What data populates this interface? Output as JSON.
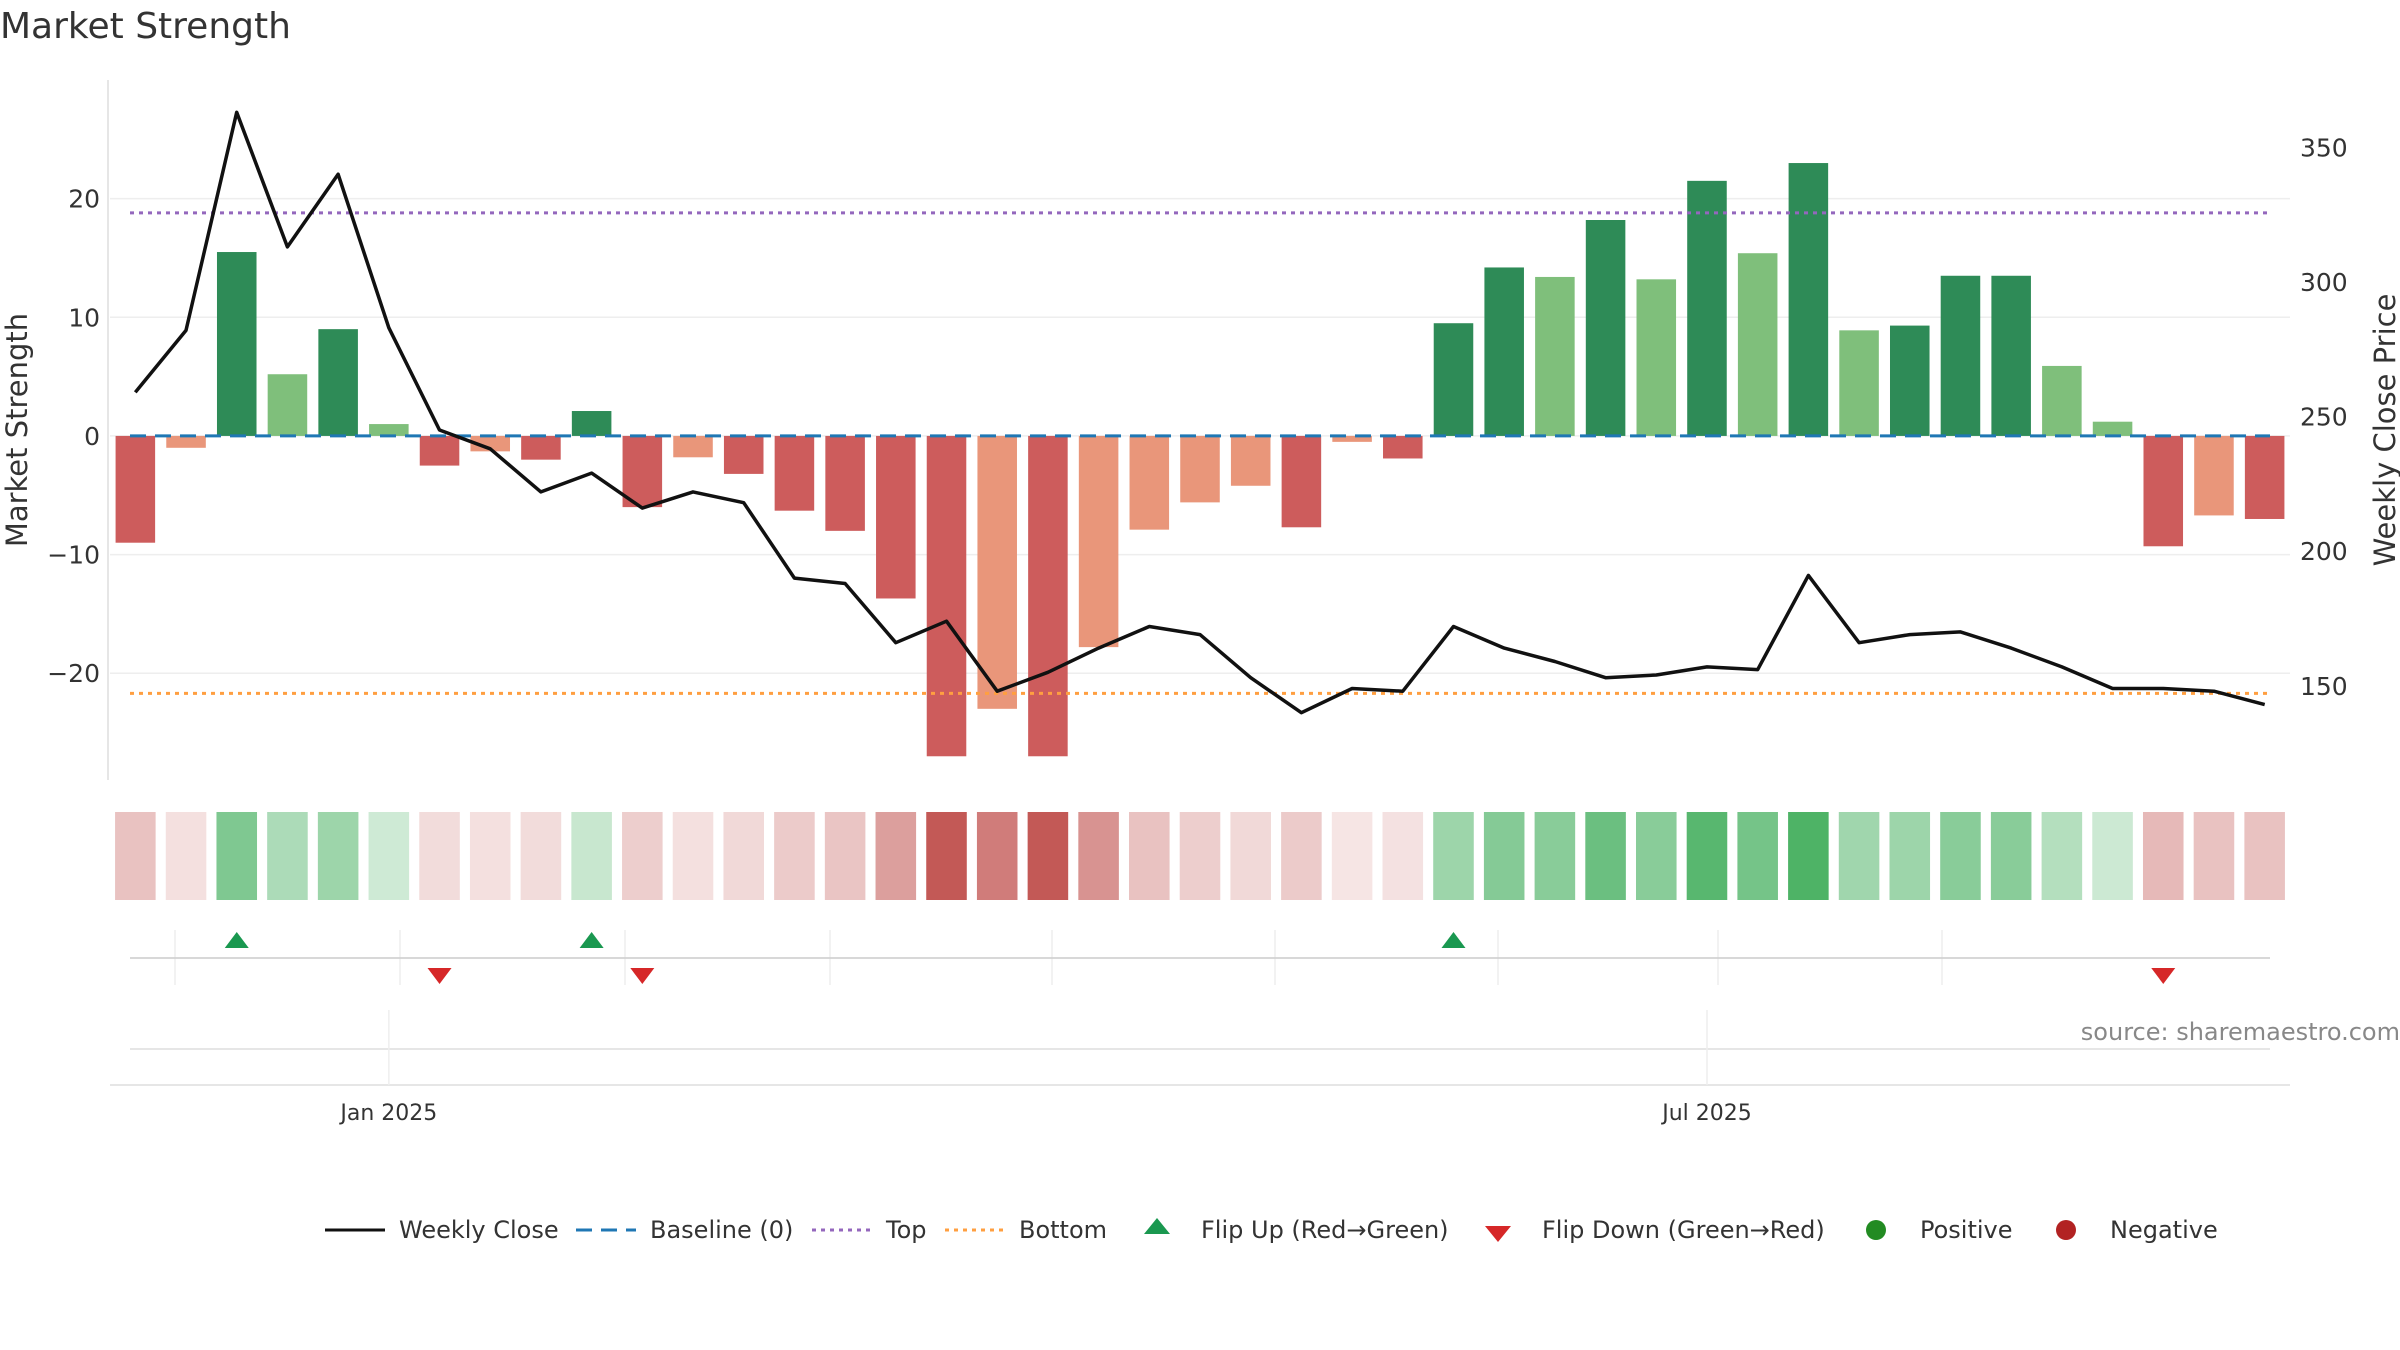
{
  "title": "Market Strength",
  "source": "source: sharemaestro.com",
  "colors": {
    "strong_green": "#2e8b57",
    "light_green": "#7fbf7b",
    "strong_red": "#cd5c5c",
    "light_red": "#e9967a",
    "close_line": "#111111",
    "baseline": "#1f77b4",
    "top": "#9467bd",
    "bottom": "#ff9f40",
    "flip_up": "#1a9850",
    "flip_down": "#d62728",
    "positive": "#228b22",
    "negative": "#b22222"
  },
  "legend": [
    {
      "key": "close",
      "label": "Weekly Close"
    },
    {
      "key": "baseline",
      "label": "Baseline (0)"
    },
    {
      "key": "top",
      "label": "Top"
    },
    {
      "key": "bottom",
      "label": "Bottom"
    },
    {
      "key": "flip_up",
      "label": "Flip Up (Red→Green)"
    },
    {
      "key": "flip_down",
      "label": "Flip Down (Green→Red)"
    },
    {
      "key": "positive",
      "label": "Positive"
    },
    {
      "key": "negative",
      "label": "Negative"
    }
  ],
  "chart_data": {
    "type": "bar",
    "ylabel_left": "Market Strength",
    "ylabel_right": "Weekly Close Price",
    "ylim_left": [
      -29,
      30
    ],
    "ylim_right": [
      115,
      375
    ],
    "yticks_left": [
      20,
      10,
      0,
      -10,
      -20
    ],
    "yticks_left_labels": [
      "20",
      "10",
      "0",
      "−10",
      "−20"
    ],
    "yticks_right": [
      350,
      300,
      250,
      200,
      150
    ],
    "xtick_labels": [
      {
        "label": "Jan 2025",
        "week_index": 5.5
      },
      {
        "label": "Jul 2025",
        "week_index": 31.5
      }
    ],
    "top_line": 18.8,
    "bottom_line": -21.7,
    "baseline": 0,
    "grid": true,
    "legend_position": "bottom",
    "weeks": 43,
    "strength": [
      -9,
      -1,
      15.5,
      5.2,
      9,
      1,
      -2.5,
      -1.3,
      -2,
      2.1,
      -6,
      -1.8,
      -3.2,
      -6.3,
      -8,
      -13.7,
      -27,
      -23,
      -27,
      -17.8,
      -7.9,
      -5.6,
      -4.2,
      -7.7,
      -0.5,
      -1.9,
      9.5,
      14.2,
      13.4,
      18.2,
      13.2,
      21.5,
      15.4,
      23,
      8.9,
      9.3,
      13.5,
      13.5,
      5.9,
      1.2,
      -9.3,
      -6.7,
      -7
    ],
    "strength_shade": [
      "strong",
      "light",
      "strong",
      "light",
      "strong",
      "light",
      "strong",
      "light",
      "strong",
      "strong",
      "strong",
      "light",
      "strong",
      "strong",
      "strong",
      "strong",
      "strong",
      "light",
      "strong",
      "light",
      "light",
      "light",
      "light",
      "strong",
      "light",
      "strong",
      "strong",
      "strong",
      "light",
      "strong",
      "light",
      "strong",
      "light",
      "strong",
      "light",
      "strong",
      "strong",
      "strong",
      "light",
      "light",
      "strong",
      "light",
      "strong"
    ],
    "weekly_close": [
      259,
      282,
      363,
      313,
      340,
      283,
      245,
      238,
      222,
      229,
      216,
      222,
      218,
      190,
      188,
      166,
      174,
      148,
      155,
      164,
      172,
      169,
      153,
      140,
      149,
      148,
      172,
      164,
      159,
      153,
      154,
      157,
      156,
      191,
      166,
      169,
      170,
      164,
      157,
      149,
      149,
      148,
      143
    ],
    "heat_intensity": [
      0.35,
      0.18,
      0.65,
      0.42,
      0.5,
      0.25,
      0.2,
      0.18,
      0.2,
      0.28,
      0.28,
      0.18,
      0.22,
      0.3,
      0.33,
      0.55,
      0.95,
      0.75,
      0.95,
      0.62,
      0.35,
      0.28,
      0.22,
      0.3,
      0.15,
      0.17,
      0.5,
      0.62,
      0.6,
      0.75,
      0.6,
      0.85,
      0.7,
      0.9,
      0.48,
      0.5,
      0.6,
      0.6,
      0.38,
      0.26,
      0.4,
      0.35,
      0.35
    ],
    "flip_up_weeks": [
      2,
      9,
      26
    ],
    "flip_down_weeks": [
      6,
      10,
      40
    ]
  }
}
